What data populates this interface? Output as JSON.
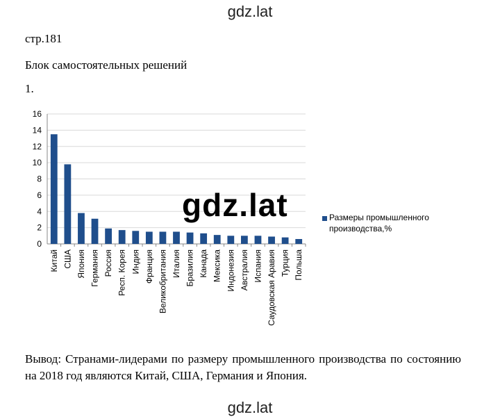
{
  "watermark_top": "gdz.lat",
  "watermark_bottom": "gdz.lat",
  "watermark_chart": "gdz.lat",
  "page_ref": "стр.181",
  "section_title": "Блок самостоятельных решений",
  "task_number": "1.",
  "conclusion": "Вывод: Странами-лидерами по размеру промышленного производства по состоянию на 2018 год являются Китай, США, Германия и Япония.",
  "colors": {
    "bar": "#1f4e8c",
    "grid": "#d9d9d9",
    "axis": "#888888"
  },
  "chart_data": {
    "type": "bar",
    "categories": [
      "Китай",
      "США",
      "Япония",
      "Германия",
      "Россия",
      "Респ. Корея",
      "Индия",
      "Франция",
      "Великобритания",
      "Италия",
      "Бразилия",
      "Канада",
      "Мексика",
      "Индонезия",
      "Австралия",
      "Испания",
      "Саудовская Аравия",
      "Турция",
      "Польша"
    ],
    "series": [
      {
        "name": "Размеры промышленного производства,%",
        "values": [
          13.5,
          9.8,
          3.8,
          3.1,
          1.9,
          1.7,
          1.6,
          1.5,
          1.5,
          1.5,
          1.4,
          1.3,
          1.1,
          1.0,
          1.0,
          1.0,
          0.9,
          0.8,
          0.6
        ]
      }
    ],
    "yticks": [
      0,
      2,
      4,
      6,
      8,
      10,
      12,
      14,
      16
    ],
    "ylim": [
      0,
      16
    ],
    "grid": true,
    "legend_position": "right"
  }
}
